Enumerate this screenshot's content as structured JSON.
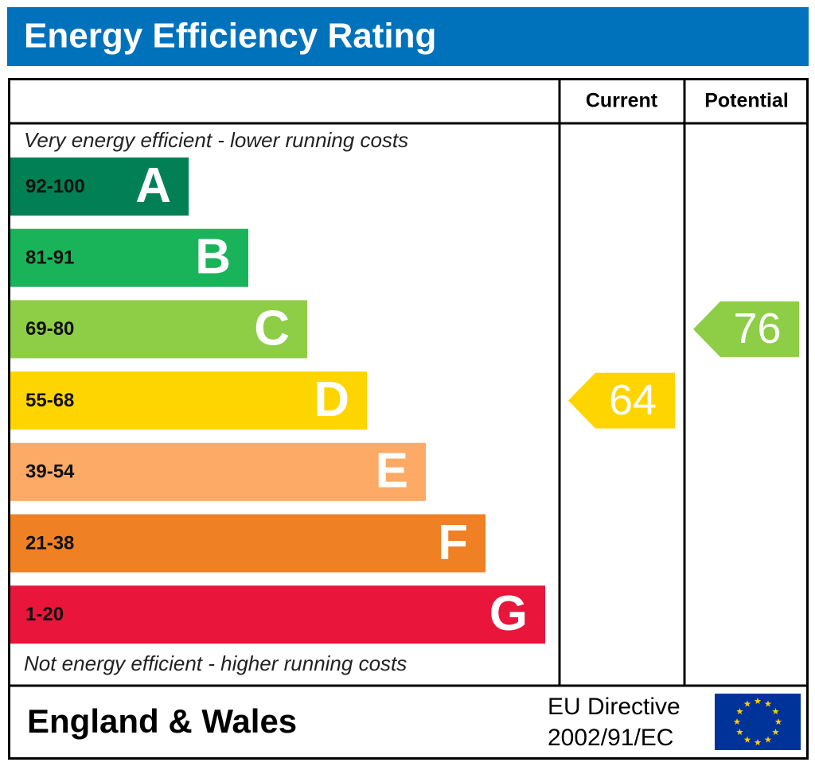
{
  "header": {
    "title": "Energy Efficiency Rating"
  },
  "columns": {
    "current": "Current",
    "potential": "Potential"
  },
  "notes": {
    "top": "Very energy efficient - lower running costs",
    "bottom": "Not energy efficient - higher running costs"
  },
  "bands": [
    {
      "range": "92-100",
      "letter": "A",
      "color": "#008054"
    },
    {
      "range": "81-91",
      "letter": "B",
      "color": "#19b459"
    },
    {
      "range": "69-80",
      "letter": "C",
      "color": "#8dce46"
    },
    {
      "range": "55-68",
      "letter": "D",
      "color": "#ffd500"
    },
    {
      "range": "39-54",
      "letter": "E",
      "color": "#fcaa65"
    },
    {
      "range": "21-38",
      "letter": "F",
      "color": "#ef8023"
    },
    {
      "range": "1-20",
      "letter": "G",
      "color": "#e9153b"
    }
  ],
  "ratings": {
    "current": 64,
    "potential": 76
  },
  "footer": {
    "region": "England & Wales",
    "directive": [
      "EU Directive",
      "2002/91/EC"
    ]
  }
}
